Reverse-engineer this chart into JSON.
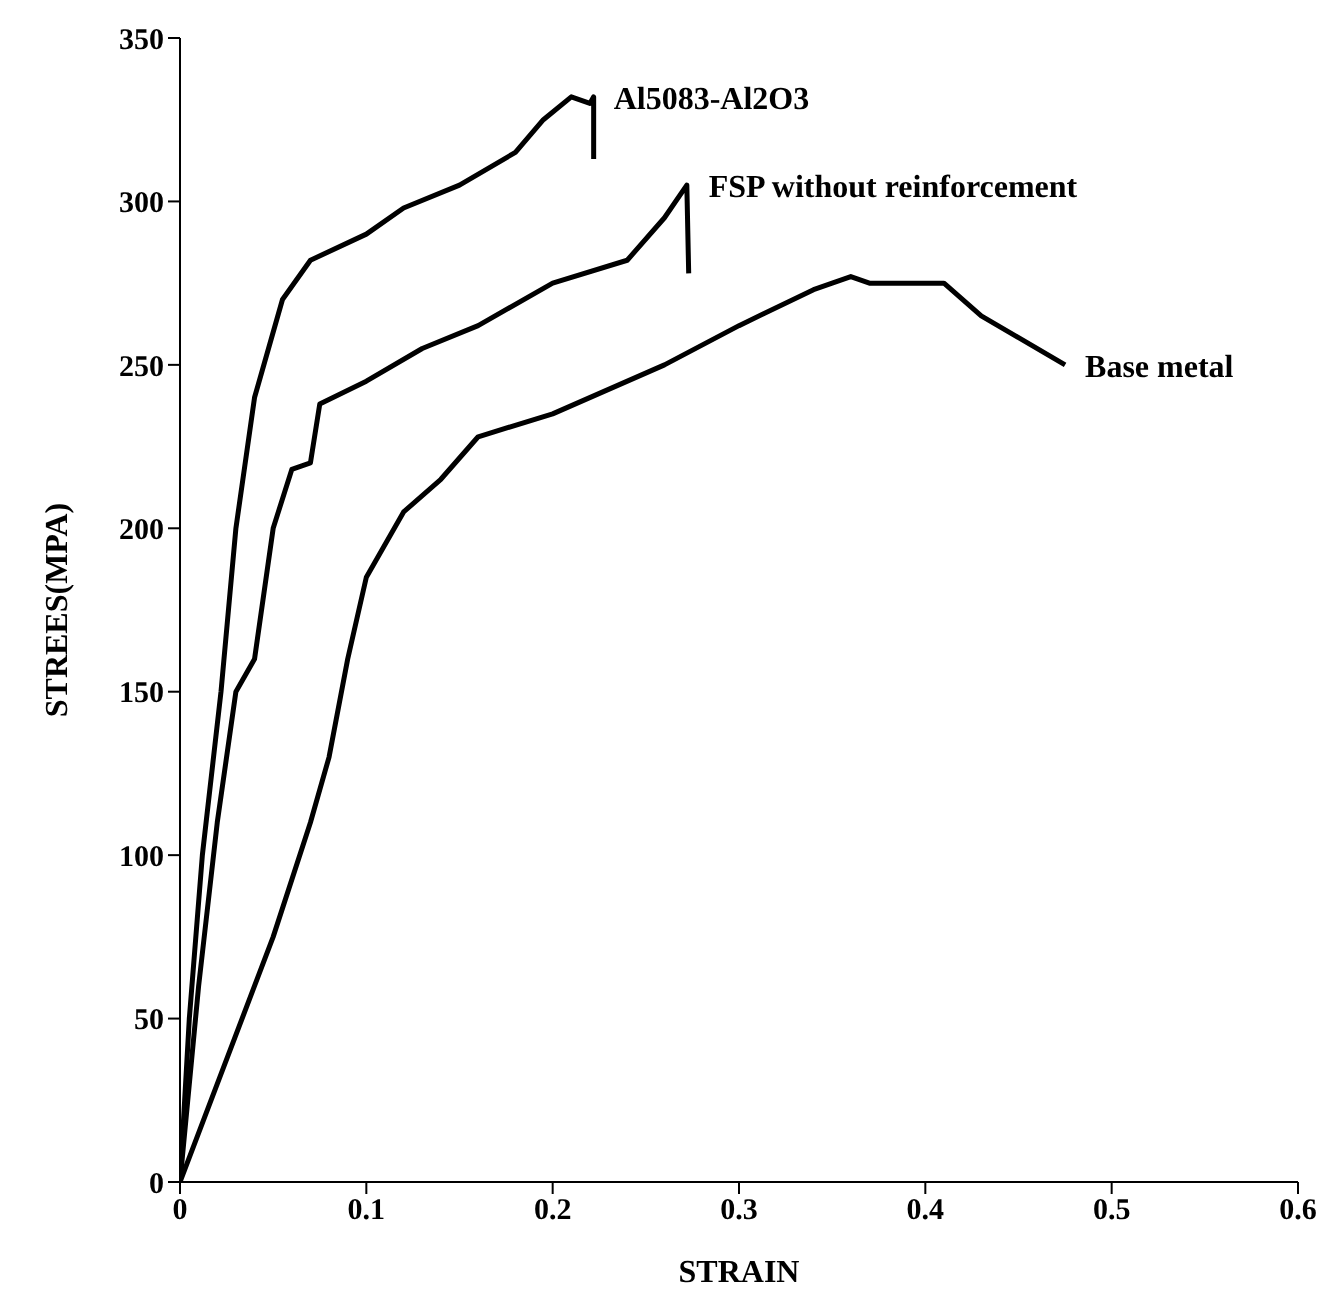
{
  "chart_data": {
    "type": "line",
    "xlabel": "STRAIN",
    "ylabel": "STREES(MPA)",
    "xlim": [
      0,
      0.6
    ],
    "xticks": [
      0,
      0.1,
      0.2,
      0.3,
      0.4,
      0.5,
      0.6
    ],
    "ylim": [
      0,
      350
    ],
    "yticks": [
      0,
      50,
      100,
      150,
      200,
      250,
      300,
      350
    ],
    "grid": false,
    "legend": false,
    "marker": "none",
    "line_style": "solid",
    "series": [
      {
        "name": "Al5083-Al2O3",
        "color": "#000000",
        "x": [
          0,
          0.005,
          0.012,
          0.022,
          0.03,
          0.04,
          0.055,
          0.07,
          0.1,
          0.12,
          0.15,
          0.18,
          0.195,
          0.21,
          0.22,
          0.222,
          0.222
        ],
        "values": [
          0,
          50,
          100,
          150,
          200,
          240,
          270,
          282,
          290,
          298,
          305,
          315,
          325,
          332,
          330,
          332,
          313
        ]
      },
      {
        "name": "FSP without reinforcement",
        "color": "#000000",
        "x": [
          0,
          0.01,
          0.02,
          0.03,
          0.04,
          0.05,
          0.06,
          0.07,
          0.075,
          0.1,
          0.13,
          0.16,
          0.2,
          0.24,
          0.26,
          0.272,
          0.273
        ],
        "values": [
          0,
          60,
          110,
          150,
          160,
          200,
          218,
          220,
          238,
          245,
          255,
          262,
          275,
          282,
          295,
          305,
          278
        ]
      },
      {
        "name": "Base metal",
        "color": "#000000",
        "x": [
          0,
          0.02,
          0.05,
          0.07,
          0.08,
          0.09,
          0.1,
          0.12,
          0.14,
          0.16,
          0.2,
          0.26,
          0.3,
          0.34,
          0.36,
          0.37,
          0.41,
          0.43,
          0.475
        ],
        "values": [
          0,
          30,
          75,
          110,
          130,
          160,
          185,
          205,
          215,
          228,
          235,
          250,
          262,
          273,
          277,
          275,
          275,
          265,
          250
        ]
      }
    ]
  }
}
